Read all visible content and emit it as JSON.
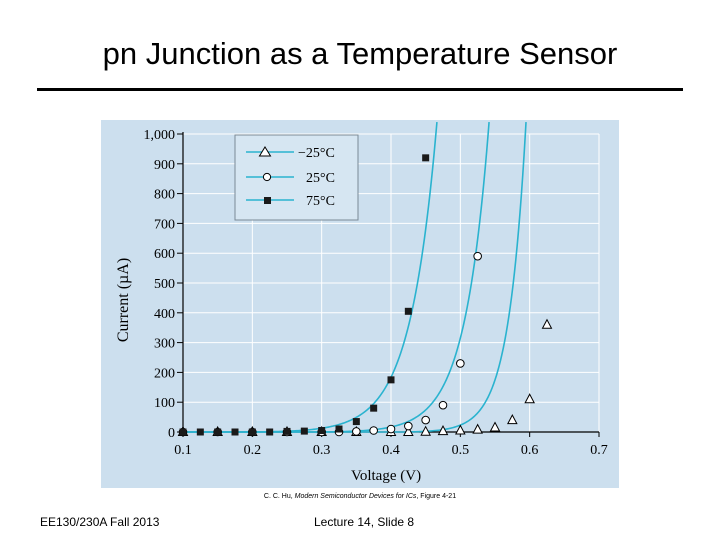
{
  "slide": {
    "title": "pn Junction as a Temperature Sensor",
    "credit_author": "C. C. Hu, ",
    "credit_book": "Modern Semiconductor Devices for ICs",
    "credit_figure": ", Figure 4-21",
    "footer_left": "EE130/230A Fall 2013",
    "footer_center": "Lecture 14, Slide 8"
  },
  "colors": {
    "curve": "#2ab3cf",
    "background": "#ccdfee",
    "axis": "#000000",
    "legend_border": "#7a8a96"
  },
  "chart_data": {
    "type": "line",
    "title": "",
    "xlabel": "Voltage (V)",
    "ylabel": "Current (µA)",
    "xlim": [
      0.1,
      0.7
    ],
    "ylim": [
      0,
      1000
    ],
    "x_ticks": [
      0.1,
      0.2,
      0.3,
      0.4,
      0.5,
      0.6,
      0.7
    ],
    "x_tick_labels": [
      "0.1",
      "0.2",
      "0.3",
      "0.4",
      "0.5",
      "0.6",
      "0.7"
    ],
    "y_ticks": [
      0,
      100,
      200,
      300,
      400,
      500,
      600,
      700,
      800,
      900,
      1000
    ],
    "y_tick_labels": [
      "0",
      "100",
      "200",
      "300",
      "400",
      "500",
      "600",
      "700",
      "800",
      "900",
      "1,000"
    ],
    "legend_position": "top-left",
    "series": [
      {
        "name": "−25°C",
        "marker": "triangle",
        "curve_v0": 0.42,
        "curve_vt": 0.02515,
        "x": [
          0.1,
          0.15,
          0.2,
          0.25,
          0.3,
          0.35,
          0.4,
          0.425,
          0.45,
          0.475,
          0.5,
          0.525,
          0.55,
          0.575,
          0.6,
          0.625
        ],
        "y": [
          0,
          0,
          0,
          0,
          0,
          0,
          0,
          0,
          1,
          3,
          5,
          8,
          15,
          40,
          110,
          360
        ]
      },
      {
        "name": "25°C",
        "marker": "circle",
        "curve_v0": 0.3,
        "curve_vt": 0.03475,
        "x": [
          0.1,
          0.15,
          0.2,
          0.25,
          0.3,
          0.325,
          0.35,
          0.375,
          0.4,
          0.425,
          0.45,
          0.475,
          0.5,
          0.525
        ],
        "y": [
          0,
          0,
          0,
          0,
          0,
          0,
          2,
          5,
          10,
          20,
          40,
          90,
          230,
          590
        ]
      },
      {
        "name": "75°C",
        "marker": "square",
        "curve_v0": 0.2,
        "curve_vt": 0.03832,
        "x": [
          0.1,
          0.125,
          0.15,
          0.175,
          0.2,
          0.225,
          0.25,
          0.275,
          0.3,
          0.325,
          0.35,
          0.375,
          0.4,
          0.425,
          0.45
        ],
        "y": [
          0,
          0,
          0,
          0,
          0,
          0,
          2,
          3,
          5,
          10,
          35,
          80,
          175,
          405,
          920
        ]
      }
    ]
  }
}
